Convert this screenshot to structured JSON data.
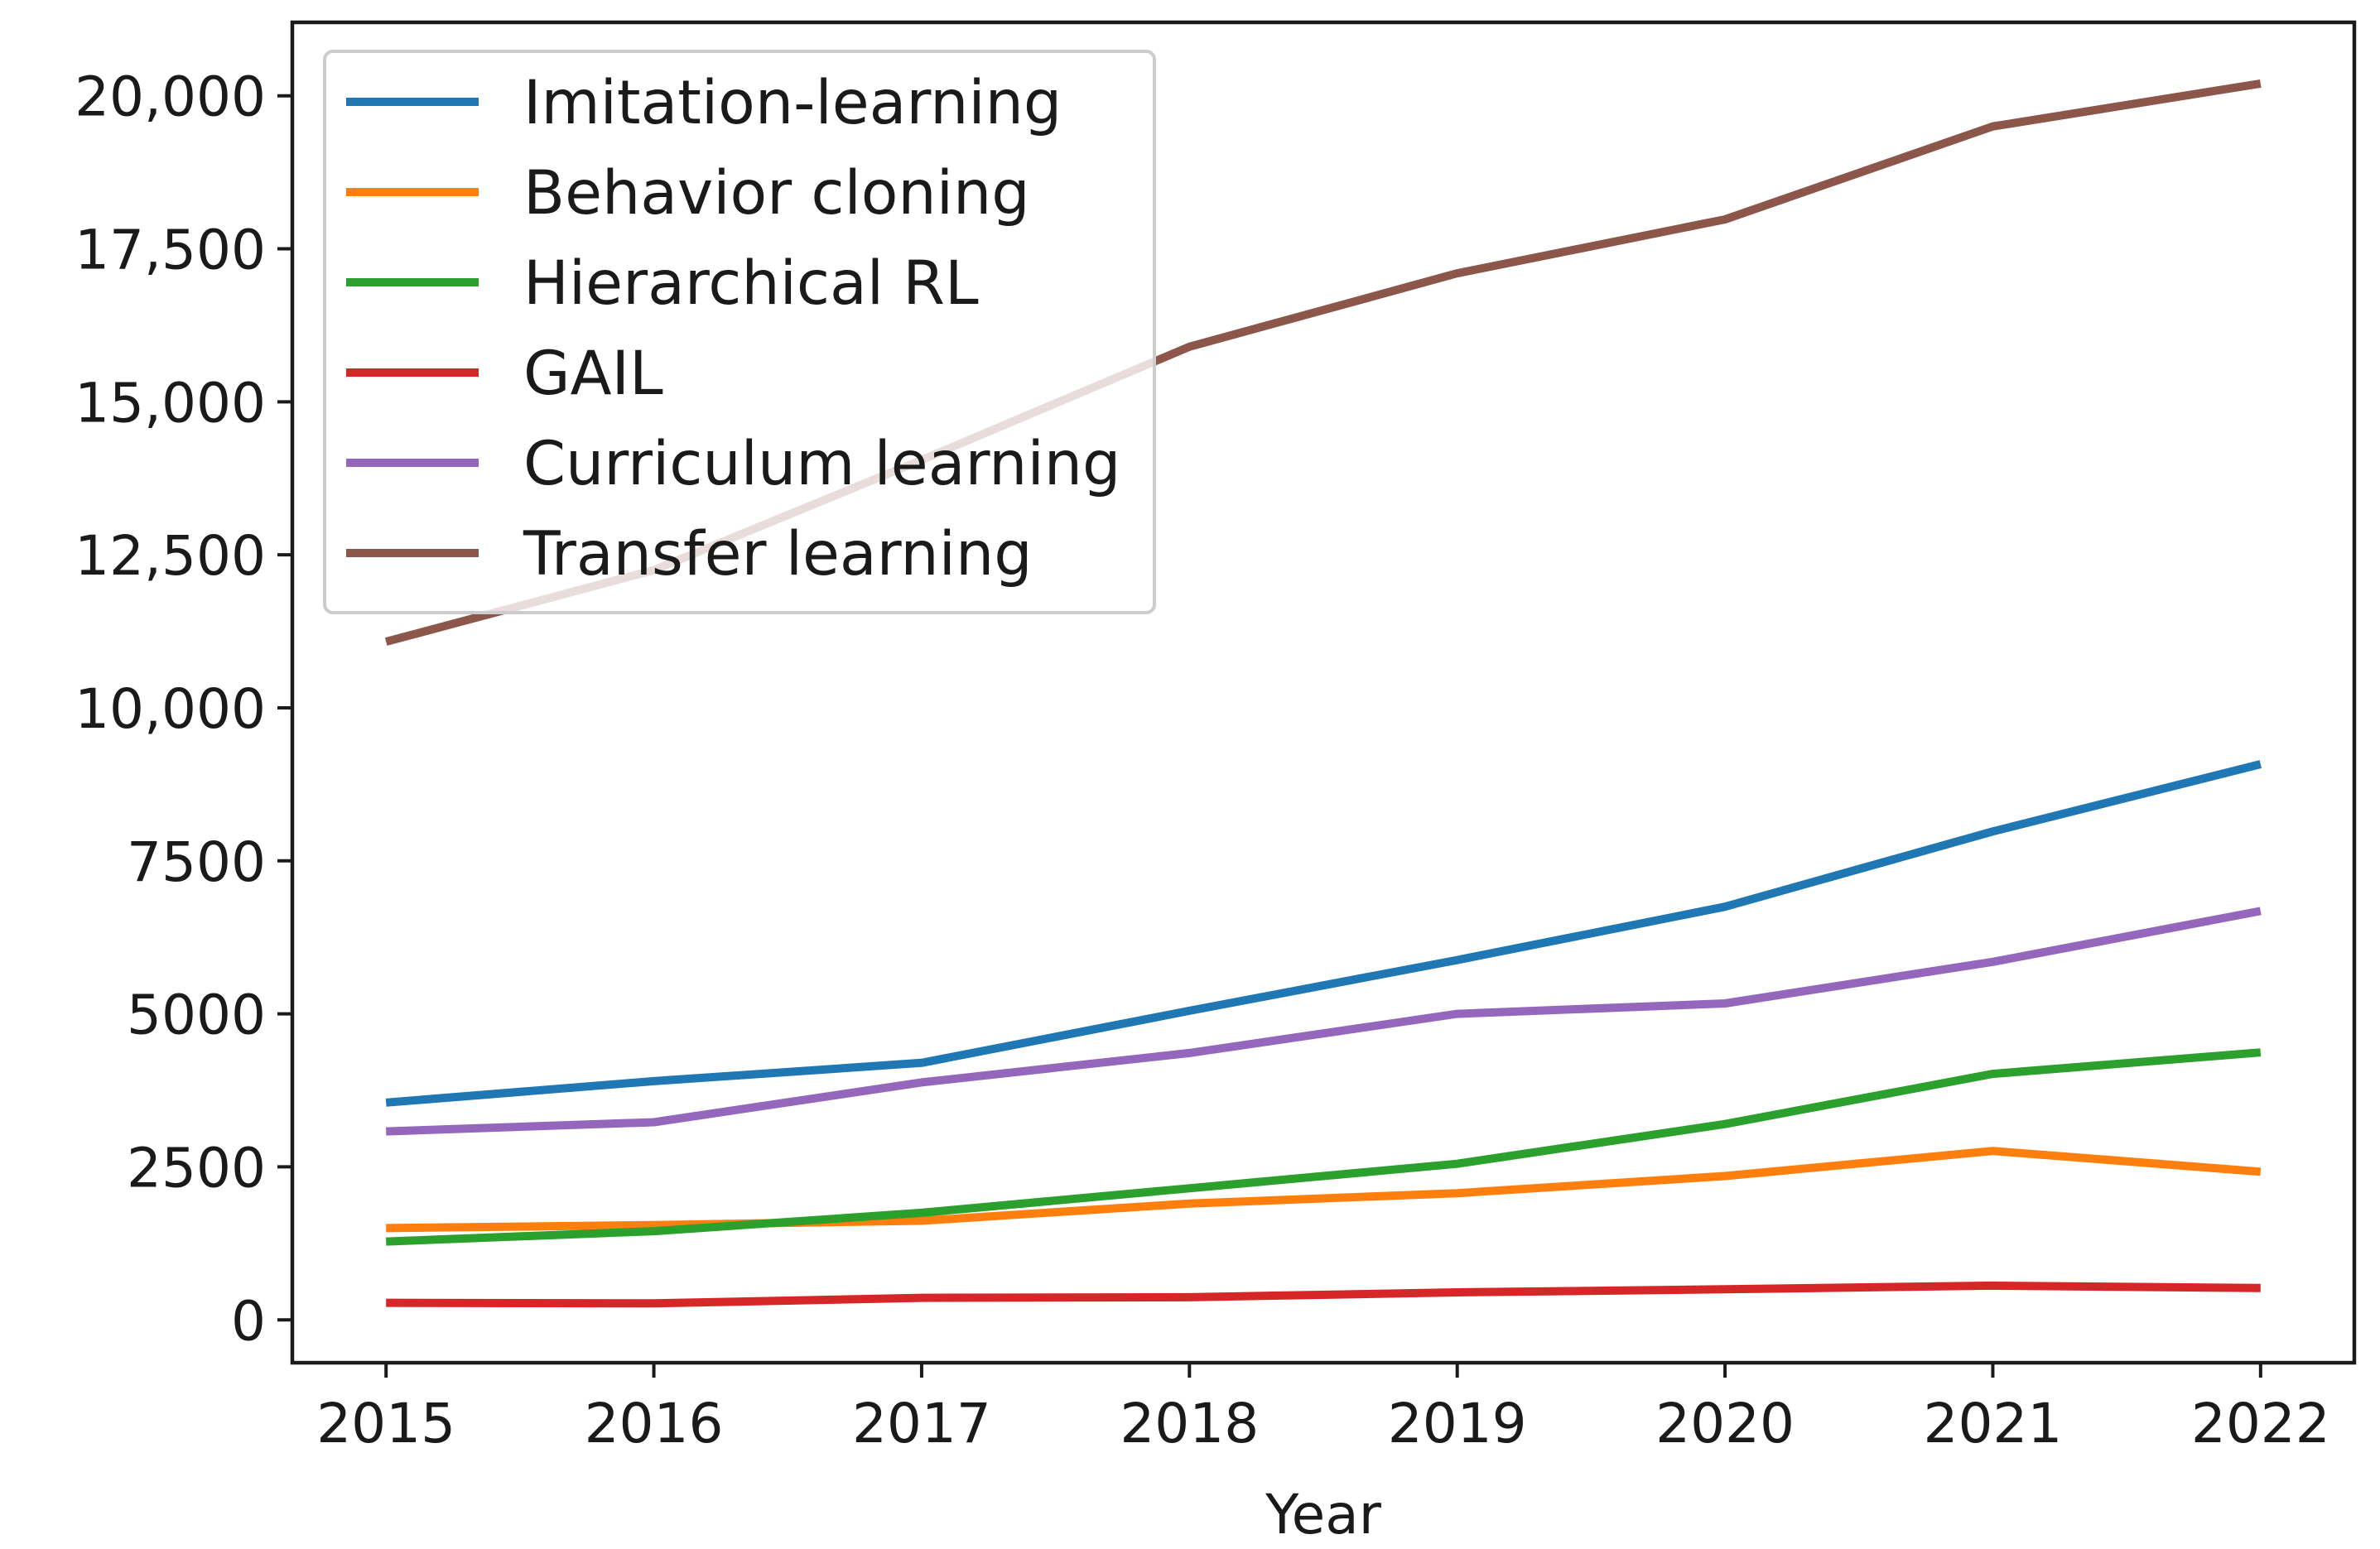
{
  "chart_data": {
    "type": "line",
    "title": "",
    "xlabel": "Year",
    "ylabel": "",
    "x": [
      2015,
      2016,
      2017,
      2018,
      2019,
      2020,
      2021,
      2022
    ],
    "xlim": [
      2014.65,
      2022.35
    ],
    "ylim": [
      -700,
      21200
    ],
    "yticks": [
      0,
      2500,
      5000,
      7500,
      10000,
      12500,
      15000,
      17500,
      20000
    ],
    "ytick_labels": [
      "0",
      "2500",
      "5000",
      "7500",
      "10,000",
      "12,500",
      "15,000",
      "17,500",
      "20,000"
    ],
    "xtick_labels": [
      "2015",
      "2016",
      "2017",
      "2018",
      "2019",
      "2020",
      "2021",
      "2022"
    ],
    "grid": false,
    "legend_position": "top-left",
    "series": [
      {
        "name": "Imitation-learning",
        "color": "#1f77b4",
        "values": [
          3550,
          3900,
          4200,
          5050,
          5880,
          6750,
          7980,
          9080
        ]
      },
      {
        "name": "Behavior cloning",
        "color": "#ff7f0e",
        "values": [
          1500,
          1550,
          1620,
          1900,
          2070,
          2350,
          2760,
          2420
        ]
      },
      {
        "name": "Hierarchical RL",
        "color": "#2ca02c",
        "values": [
          1280,
          1450,
          1750,
          2150,
          2550,
          3200,
          4020,
          4370
        ]
      },
      {
        "name": "GAIL",
        "color": "#d62728",
        "values": [
          280,
          270,
          360,
          370,
          450,
          500,
          560,
          520
        ]
      },
      {
        "name": "Curriculum learning",
        "color": "#9467bd",
        "values": [
          3080,
          3230,
          3880,
          4360,
          5000,
          5170,
          5850,
          6680
        ]
      },
      {
        "name": "Transfer learning",
        "color": "#8c564b",
        "values": [
          11080,
          12250,
          14050,
          15900,
          17100,
          17980,
          19500,
          20200
        ]
      }
    ]
  }
}
